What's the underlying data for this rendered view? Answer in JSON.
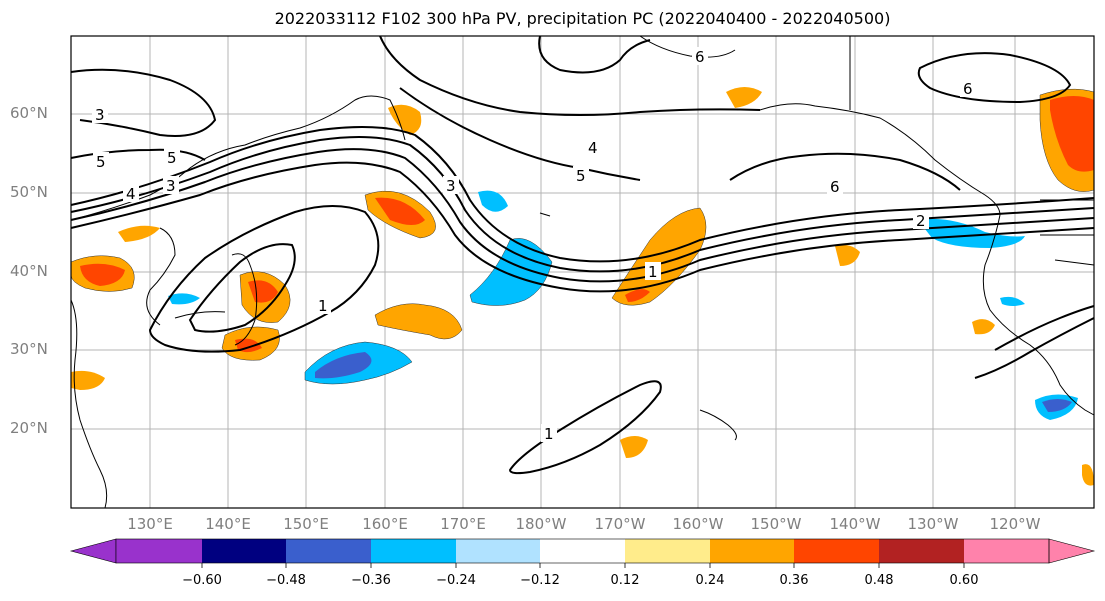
{
  "title": "2022033112 F102 300 hPa PV, precipitation PC (2022040400 - 2022040500)",
  "lat_labels": [
    "60°N",
    "50°N",
    "40°N",
    "30°N",
    "20°N"
  ],
  "lon_labels": [
    "130°E",
    "140°E",
    "150°E",
    "160°E",
    "170°E",
    "180°W",
    "170°W",
    "160°W",
    "150°W",
    "140°W",
    "130°W",
    "120°W"
  ],
  "contour_labels": [
    "3",
    "5",
    "5",
    "4",
    "3",
    "3",
    "4",
    "5",
    "6",
    "6",
    "6",
    "1",
    "1",
    "1",
    "2"
  ],
  "colorbar": {
    "colors": [
      "#9932cc",
      "#000080",
      "#3a5fcd",
      "#00bfff",
      "#b0e2ff",
      "#ffffff",
      "#ffec8b",
      "#ffa500",
      "#ff4500",
      "#b22222",
      "#ff82ab"
    ],
    "ticks": [
      "−0.60",
      "−0.48",
      "−0.36",
      "−0.24",
      "−0.12",
      "0.12",
      "0.24",
      "0.36",
      "0.48",
      "0.60"
    ]
  }
}
